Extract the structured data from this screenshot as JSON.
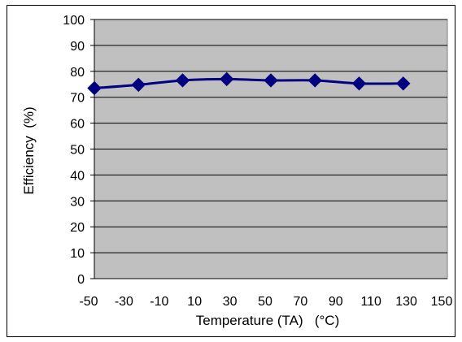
{
  "chart_data": {
    "type": "line",
    "title": "",
    "xlabel": "Temperature (TA)   (°C)",
    "ylabel": "Efficiency  (%)",
    "x_tick_labels": [
      "-50",
      "-30",
      "-10",
      "10",
      "30",
      "50",
      "70",
      "90",
      "110",
      "130",
      "150"
    ],
    "y_tick_labels": [
      "0",
      "10",
      "20",
      "30",
      "40",
      "50",
      "60",
      "70",
      "80",
      "90",
      "100"
    ],
    "xlim": [
      -50,
      150
    ],
    "ylim": [
      0,
      100
    ],
    "grid": "horizontal",
    "legend": "none",
    "series": [
      {
        "x": [
          -50,
          -25,
          0,
          25,
          50,
          75,
          100,
          125
        ],
        "y": [
          73.5,
          74.8,
          76.5,
          77.0,
          76.5,
          76.5,
          75.3,
          75.3
        ]
      }
    ],
    "colors": {
      "plot_background": "#c0c0c0",
      "line": "#000080",
      "marker": "#000080",
      "grid": "#000000"
    }
  }
}
